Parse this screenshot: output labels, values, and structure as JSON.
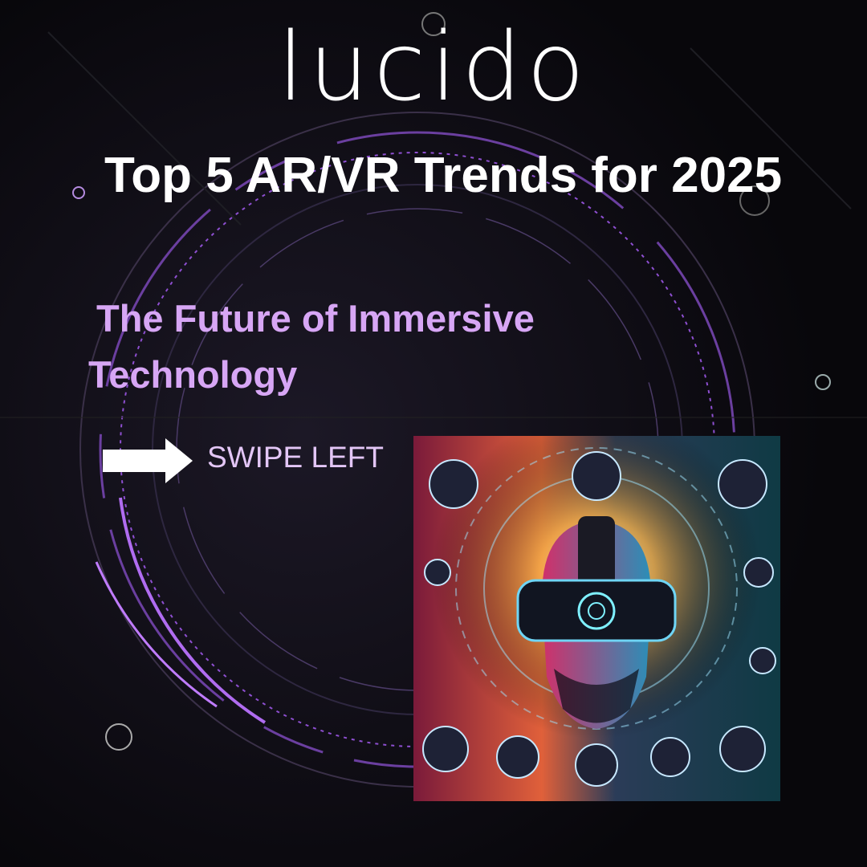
{
  "header": {
    "logo": "lucido",
    "title": "Top 5 AR/VR Trends for 2025",
    "subtitle": "The Future of Immersive Technology"
  },
  "cta": {
    "label": "SWIPE LEFT"
  }
}
